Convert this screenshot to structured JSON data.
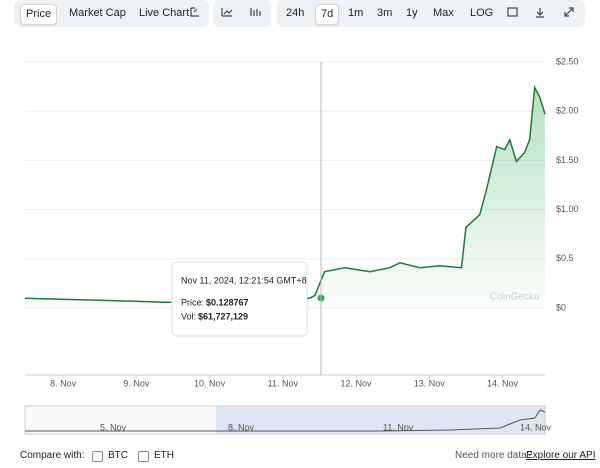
{
  "toolbar": {
    "tabs": [
      "Price",
      "Market Cap",
      "Live Chart"
    ],
    "ranges": [
      "24h",
      "7d",
      "1m",
      "3m",
      "1y",
      "Max",
      "LOG"
    ]
  },
  "chart_data": {
    "type": "line",
    "color": "#1f7a3a",
    "x": [
      7.48,
      7.96,
      8.5,
      9.39,
      9.87,
      10.55,
      11.37,
      11.44,
      11.57,
      11.85,
      12.19,
      12.46,
      12.6,
      12.87,
      13.14,
      13.44,
      13.5,
      13.69,
      13.78,
      13.92,
      14.03,
      14.1,
      14.19,
      14.3,
      14.37,
      14.44,
      14.51,
      14.58
    ],
    "values": [
      0.1,
      0.09,
      0.08,
      0.06,
      0.06,
      0.07,
      0.1,
      0.13,
      0.37,
      0.41,
      0.37,
      0.41,
      0.46,
      0.41,
      0.43,
      0.41,
      0.82,
      0.95,
      1.2,
      1.64,
      1.61,
      1.71,
      1.49,
      1.58,
      1.71,
      2.24,
      2.14,
      1.97
    ],
    "xlim": [
      7.48,
      14.58
    ],
    "xticks": [
      {
        "value": 8,
        "label": "8. Nov"
      },
      {
        "value": 9,
        "label": "9. Nov"
      },
      {
        "value": 10,
        "label": "10. Nov"
      },
      {
        "value": 11,
        "label": "11. Nov"
      },
      {
        "value": 12,
        "label": "12. Nov"
      },
      {
        "value": 13,
        "label": "13. Nov"
      },
      {
        "value": 14,
        "label": "14. Nov"
      }
    ],
    "ylim": [
      -0.68,
      2.5
    ],
    "yticks": [
      {
        "value": 0,
        "label": "$0"
      },
      {
        "value": 0.5,
        "label": "$0.5"
      },
      {
        "value": 1,
        "label": "$1.00"
      },
      {
        "value": 1.5,
        "label": "$1.50"
      },
      {
        "value": 2,
        "label": "$2.00"
      },
      {
        "value": 2.5,
        "label": "$2.50"
      }
    ],
    "grid": true
  },
  "tooltip": {
    "date": "Nov 11, 2024, 12:21:54 GMT+8",
    "price_label": "Price:",
    "price": "$0.128767",
    "vol_label": "Vol:",
    "vol": "$61,727,129"
  },
  "watermark": "CoinGecko",
  "navigator": {
    "labels": [
      "5. Nov",
      "8. Nov",
      "11. Nov",
      "14. Nov"
    ]
  },
  "footer": {
    "compare_label": "Compare with:",
    "options": [
      "BTC",
      "ETH"
    ],
    "api_note": "Need more data?",
    "api_link": "Explore our API"
  }
}
